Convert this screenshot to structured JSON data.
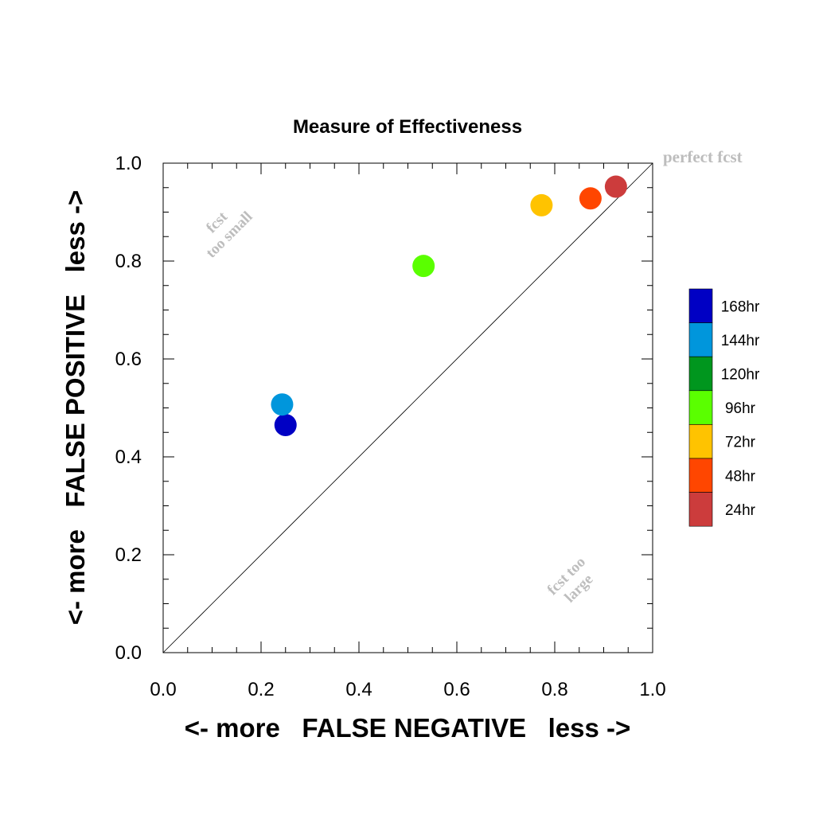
{
  "chart_data": {
    "type": "scatter",
    "title": "Measure of Effectiveness",
    "xlabel": "<- more   FALSE NEGATIVE   less ->",
    "ylabel": "<- more   FALSE POSITIVE   less ->",
    "xlim": [
      0.0,
      1.0
    ],
    "ylim": [
      0.0,
      1.0
    ],
    "x_ticks": [
      "0.0",
      "0.2",
      "0.4",
      "0.6",
      "0.8",
      "1.0"
    ],
    "y_ticks": [
      "0.0",
      "0.2",
      "0.4",
      "0.6",
      "0.8",
      "1.0"
    ],
    "grid": false,
    "diagonal_reference_line": true,
    "legend_position": "right",
    "annotations": {
      "perfect": "perfect fcst",
      "too_small_line1": "fcst",
      "too_small_line2": "too small",
      "too_large_line1": "fcst too",
      "too_large_line2": "large"
    },
    "series": [
      {
        "name": "168hr",
        "color": "#0000c4",
        "x": 0.25,
        "y": 0.465
      },
      {
        "name": "144hr",
        "color": "#0096dc",
        "x": 0.243,
        "y": 0.507
      },
      {
        "name": "120hr",
        "color": "#00961e",
        "x": null,
        "y": null
      },
      {
        "name": "96hr",
        "color": "#5aff00",
        "x": 0.532,
        "y": 0.79
      },
      {
        "name": "72hr",
        "color": "#ffc300",
        "x": 0.773,
        "y": 0.914
      },
      {
        "name": "48hr",
        "color": "#ff4600",
        "x": 0.873,
        "y": 0.928
      },
      {
        "name": "24hr",
        "color": "#cc3c3c",
        "x": 0.925,
        "y": 0.952
      }
    ]
  }
}
